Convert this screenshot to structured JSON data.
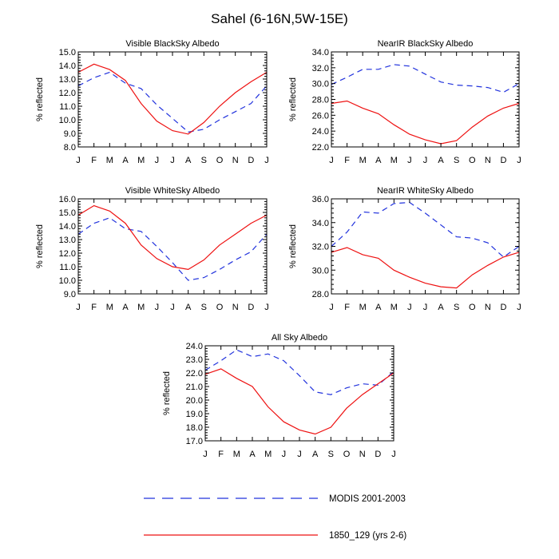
{
  "title": "Sahel (6-16N,5W-15E)",
  "colors": {
    "modis": "#2233dd",
    "model": "#ee1111"
  },
  "legend": [
    {
      "label": "MODIS 2001-2003",
      "style": "dashed",
      "color": "#2233dd"
    },
    {
      "label": "1850_129 (yrs 2-6)",
      "style": "solid",
      "color": "#ee1111"
    }
  ],
  "chart_data": [
    {
      "type": "line",
      "title": "Visible BlackSky Albedo",
      "ylabel": "% reflected",
      "categories": [
        "J",
        "F",
        "M",
        "A",
        "M",
        "J",
        "J",
        "A",
        "S",
        "O",
        "N",
        "D",
        "J"
      ],
      "ylim": [
        8.0,
        15.0
      ],
      "yticks": [
        "8.0",
        "9.0",
        "10.0",
        "11.0",
        "12.0",
        "13.0",
        "14.0",
        "15.0"
      ],
      "series": [
        {
          "name": "MODIS 2001-2003",
          "values": [
            12.5,
            13.1,
            13.5,
            12.7,
            12.3,
            11.1,
            10.1,
            9.1,
            9.3,
            10.0,
            10.6,
            11.2,
            12.5
          ]
        },
        {
          "name": "1850_129 (yrs 2-6)",
          "values": [
            13.5,
            14.1,
            13.7,
            12.9,
            11.2,
            9.9,
            9.2,
            8.95,
            9.8,
            11.0,
            12.0,
            12.8,
            13.5
          ]
        }
      ]
    },
    {
      "type": "line",
      "title": "NearIR BlackSky Albedo",
      "ylabel": "% reflected",
      "categories": [
        "J",
        "F",
        "M",
        "A",
        "M",
        "J",
        "J",
        "A",
        "S",
        "O",
        "N",
        "D",
        "J"
      ],
      "ylim": [
        22.0,
        34.0
      ],
      "yticks": [
        "22.0",
        "24.0",
        "26.0",
        "28.0",
        "30.0",
        "32.0",
        "34.0"
      ],
      "series": [
        {
          "name": "MODIS 2001-2003",
          "values": [
            29.9,
            30.8,
            31.8,
            31.8,
            32.4,
            32.2,
            31.2,
            30.2,
            29.8,
            29.7,
            29.5,
            28.9,
            30.0
          ]
        },
        {
          "name": "1850_129 (yrs 2-6)",
          "values": [
            27.5,
            27.8,
            26.9,
            26.2,
            24.8,
            23.6,
            22.9,
            22.4,
            22.8,
            24.5,
            25.9,
            26.9,
            27.5
          ]
        }
      ]
    },
    {
      "type": "line",
      "title": "Visible WhiteSky Albedo",
      "ylabel": "% reflected",
      "categories": [
        "J",
        "F",
        "M",
        "A",
        "M",
        "J",
        "J",
        "A",
        "S",
        "O",
        "N",
        "D",
        "J"
      ],
      "ylim": [
        9.0,
        16.0
      ],
      "yticks": [
        "9.0",
        "10.0",
        "11.0",
        "12.0",
        "13.0",
        "14.0",
        "15.0",
        "16.0"
      ],
      "series": [
        {
          "name": "MODIS 2001-2003",
          "values": [
            13.4,
            14.2,
            14.6,
            13.8,
            13.6,
            12.5,
            11.3,
            10.0,
            10.2,
            10.8,
            11.5,
            12.1,
            13.4
          ]
        },
        {
          "name": "1850_129 (yrs 2-6)",
          "values": [
            14.8,
            15.5,
            15.1,
            14.2,
            12.6,
            11.6,
            11.0,
            10.8,
            11.5,
            12.6,
            13.4,
            14.2,
            14.8
          ]
        }
      ]
    },
    {
      "type": "line",
      "title": "NearIR WhiteSky Albedo",
      "ylabel": "% reflected",
      "categories": [
        "J",
        "F",
        "M",
        "A",
        "M",
        "J",
        "J",
        "A",
        "S",
        "O",
        "N",
        "D",
        "J"
      ],
      "ylim": [
        28.0,
        36.0
      ],
      "yticks": [
        "28.0",
        "30.0",
        "32.0",
        "34.0",
        "36.0"
      ],
      "series": [
        {
          "name": "MODIS 2001-2003",
          "values": [
            32.0,
            33.2,
            34.9,
            34.8,
            35.6,
            35.7,
            34.8,
            33.8,
            32.8,
            32.7,
            32.3,
            31.1,
            32.0
          ]
        },
        {
          "name": "1850_129 (yrs 2-6)",
          "values": [
            31.5,
            31.9,
            31.3,
            31.0,
            30.0,
            29.4,
            28.9,
            28.6,
            28.5,
            29.6,
            30.4,
            31.1,
            31.5
          ]
        }
      ]
    },
    {
      "type": "line",
      "title": "All Sky Albedo",
      "ylabel": "% reflected",
      "categories": [
        "J",
        "F",
        "M",
        "A",
        "M",
        "J",
        "J",
        "A",
        "S",
        "O",
        "N",
        "D",
        "J"
      ],
      "ylim": [
        17.0,
        24.0
      ],
      "yticks": [
        "17.0",
        "18.0",
        "19.0",
        "20.0",
        "21.0",
        "22.0",
        "23.0",
        "24.0"
      ],
      "series": [
        {
          "name": "MODIS 2001-2003",
          "values": [
            22.2,
            22.9,
            23.7,
            23.2,
            23.4,
            22.9,
            21.8,
            20.6,
            20.4,
            20.9,
            21.2,
            21.1,
            22.1
          ]
        },
        {
          "name": "1850_129 (yrs 2-6)",
          "values": [
            21.9,
            22.3,
            21.6,
            21.0,
            19.5,
            18.4,
            17.8,
            17.5,
            18.0,
            19.4,
            20.4,
            21.2,
            22.0
          ]
        }
      ]
    }
  ]
}
